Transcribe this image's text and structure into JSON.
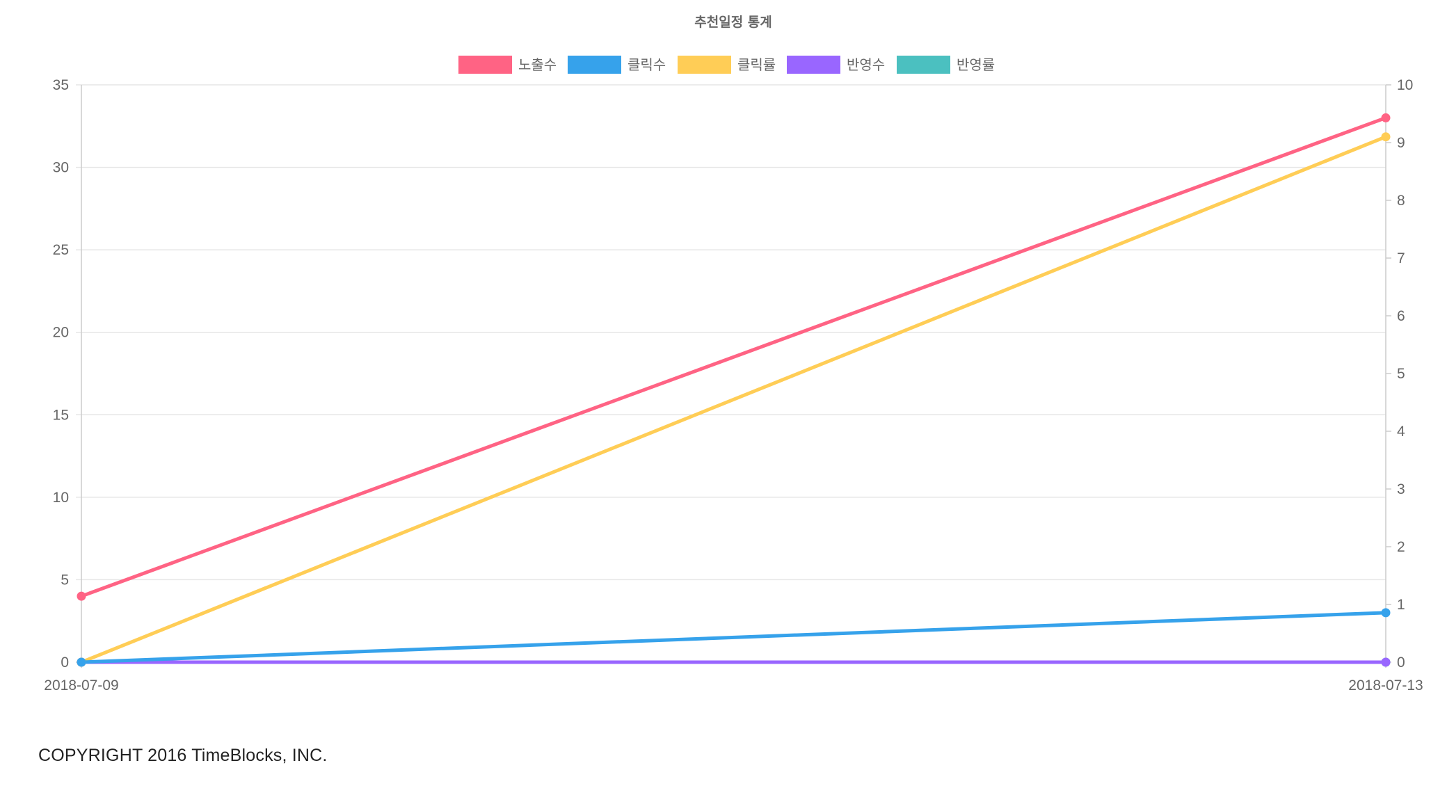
{
  "chart_data": {
    "type": "line",
    "title": "추천일정 통계",
    "categories": [
      "2018-07-09",
      "2018-07-13"
    ],
    "y_left": {
      "min": 0,
      "max": 35,
      "ticks": [
        "0",
        "5",
        "10",
        "15",
        "20",
        "25",
        "30",
        "35"
      ]
    },
    "y_right": {
      "min": 0,
      "max": 10,
      "ticks": [
        "0",
        "1",
        "2",
        "3",
        "4",
        "5",
        "6",
        "7",
        "8",
        "9",
        "10"
      ]
    },
    "grid": true,
    "legend_position": "top",
    "series": [
      {
        "name": "노출수",
        "color": "#ff6384",
        "axis": "left",
        "values": [
          4,
          33
        ]
      },
      {
        "name": "클릭수",
        "color": "#36a2eb",
        "axis": "left",
        "values": [
          0,
          3
        ]
      },
      {
        "name": "클릭률",
        "color": "#ffcd56",
        "axis": "right",
        "values": [
          0,
          9.1
        ]
      },
      {
        "name": "반영수",
        "color": "#9966ff",
        "axis": "left",
        "values": [
          0,
          0
        ]
      },
      {
        "name": "반영률",
        "color": "#4bc0c0",
        "axis": "right",
        "values": [
          0,
          0
        ]
      }
    ]
  },
  "footer": {
    "copyright": "COPYRIGHT 2016 TimeBlocks, INC."
  }
}
